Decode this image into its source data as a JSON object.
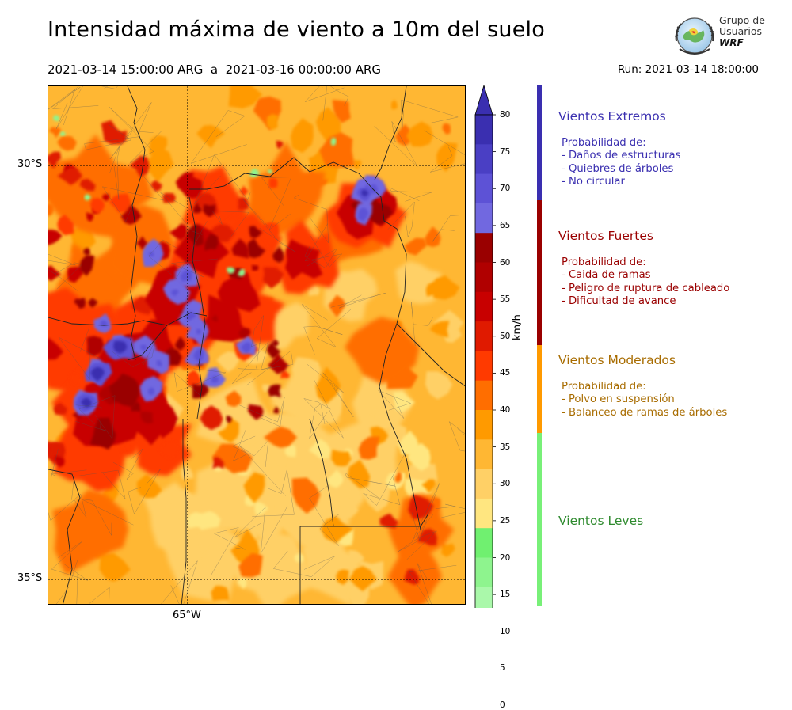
{
  "title": "Intensidad máxima de viento a 10m del suelo",
  "period": "2021-03-14 15:00:00 ARG  a  2021-03-16 00:00:00 ARG",
  "run": "Run: 2021-03-14 18:00:00",
  "logo": {
    "line1": "Grupo de",
    "line2": "Usuarios",
    "line3": "WRF"
  },
  "map": {
    "lat_labels": [
      "30°S",
      "35°S"
    ],
    "lon_labels": [
      "65°W"
    ],
    "extent": {
      "lon": [
        -66.0,
        -61.0
      ],
      "lat": [
        -28.0,
        -35.2
      ]
    }
  },
  "colorbar": {
    "unit": "km/h",
    "ticks": [
      "80",
      "75",
      "70",
      "65",
      "60",
      "55",
      "50",
      "45",
      "40",
      "35",
      "30",
      "25",
      "20",
      "15",
      "10",
      "5",
      "0"
    ],
    "colors": [
      "#3a2fb0",
      "#4a3fc4",
      "#5d52d6",
      "#7168e0",
      "#9a0000",
      "#b00000",
      "#c80000",
      "#e01a00",
      "#ff3a00",
      "#ff6e00",
      "#ff9a00",
      "#ffb733",
      "#ffd066",
      "#ffe680",
      "#70f070",
      "#8ef48e",
      "#aaf8aa",
      "#c4fbc4",
      "#ddfddd",
      "#eefff0"
    ]
  },
  "categories": [
    {
      "title": "Vientos Extremos",
      "color": "#3a2fb0",
      "lines": [
        "Probabilidad de:",
        "- Daños de estructuras",
        "- Quiebres de árboles",
        "- No circular"
      ]
    },
    {
      "title": "Vientos Fuertes",
      "color": "#9a0000",
      "lines": [
        "Probabilidad de:",
        "- Caida de ramas",
        "- Peligro de ruptura de cableado",
        "- Dificultad de avance"
      ]
    },
    {
      "title": "Vientos Moderados",
      "color": "#a86c00",
      "lines": [
        "Probabilidad de:",
        "- Polvo en suspensión",
        "- Balanceo de ramas de árboles"
      ]
    },
    {
      "title": "Vientos Leves",
      "color": "#2e8a2e",
      "lines": []
    }
  ],
  "category_bar_colors": [
    "#3a2fb0",
    "#9a0000",
    "#ff9a00",
    "#78f078"
  ]
}
